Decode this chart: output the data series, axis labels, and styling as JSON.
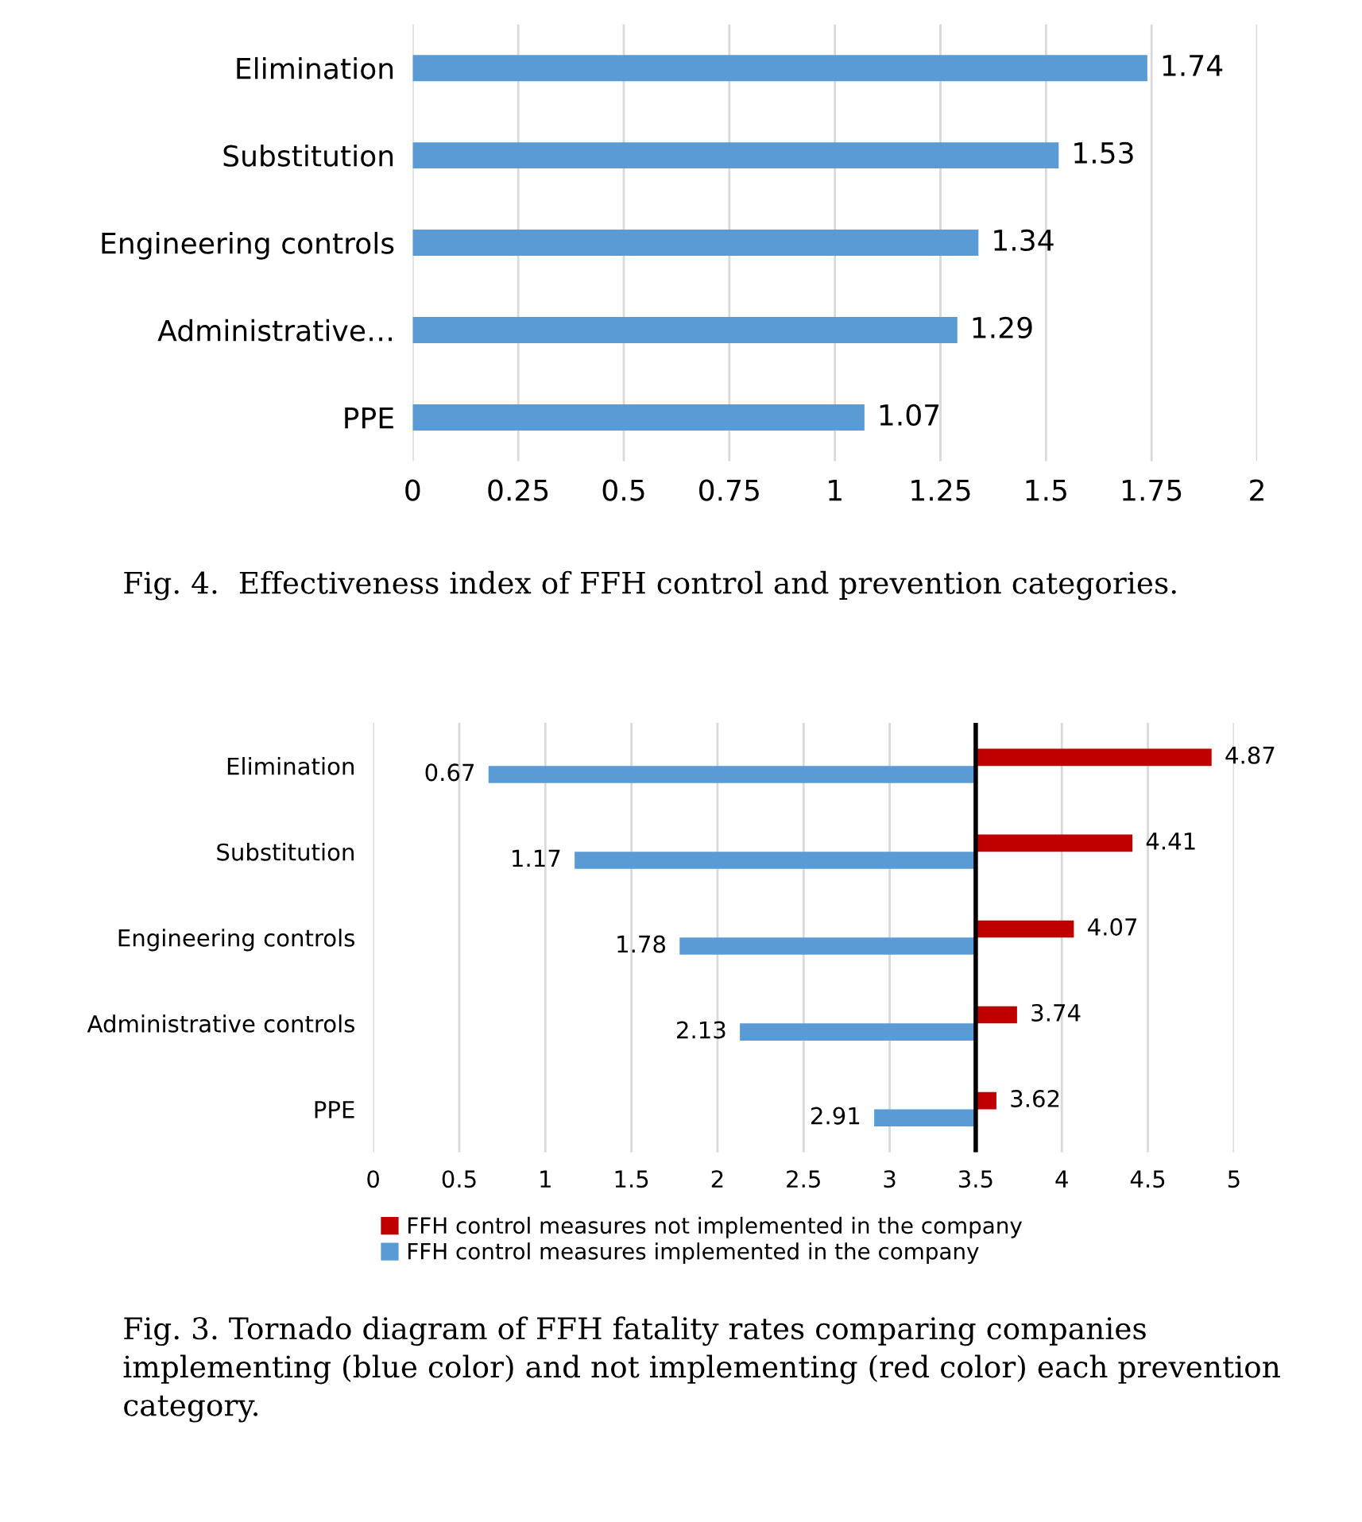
{
  "chart_data": [
    {
      "type": "bar",
      "orientation": "horizontal",
      "title": "Fig. 4.  Effectiveness index of FFH control and prevention categories.",
      "categories": [
        "Elimination",
        "Substitution",
        "Engineering controls",
        "Administrative…",
        "PPE"
      ],
      "series": [
        {
          "color": "#5b9bd5",
          "values": [
            1.74,
            1.53,
            1.34,
            1.29,
            1.07
          ]
        }
      ],
      "data_labels": true,
      "xlim": [
        0,
        2
      ],
      "xticks": [
        0,
        0.25,
        0.5,
        0.75,
        1,
        1.25,
        1.5,
        1.75,
        2
      ],
      "grid": "x",
      "legend": false
    },
    {
      "type": "bar",
      "orientation": "horizontal",
      "title": "Fig. 3. Tornado diagram of FFH fatality rates comparing companies implementing (blue color) and not implementing (red color) each prevention category.",
      "categories": [
        "Elimination",
        "Substitution",
        "Engineering controls",
        "Administrative controls",
        "PPE"
      ],
      "series": [
        {
          "name": "FFH control measures not implemented in the company",
          "color": "#c00000",
          "base": [
            3.5,
            3.5,
            3.5,
            3.5,
            3.5
          ],
          "values": [
            1.37,
            0.91,
            0.57,
            0.24,
            0.12
          ],
          "value_labels": [
            "4.87",
            "4.41",
            "4.07",
            "3.74",
            "3.62"
          ]
        },
        {
          "name": "FFH control measures implemented in the company",
          "color": "#5b9bd5",
          "base": [
            3.5,
            3.5,
            3.5,
            3.5,
            3.5
          ],
          "values": [
            -2.83,
            -2.33,
            -1.72,
            -1.37,
            -0.59
          ],
          "value_labels": [
            "0.67",
            "1.17",
            "1.78",
            "2.13",
            "2.91"
          ]
        }
      ],
      "xlim": [
        0,
        5
      ],
      "xticks": [
        0,
        0.5,
        1,
        1.5,
        2,
        2.5,
        3,
        3.5,
        4,
        4.5,
        5
      ],
      "grid": "x",
      "legend": "bottom",
      "ref_lines": [
        {
          "axis": "x",
          "value": 3.5,
          "color": "#000000",
          "line_style": "solid"
        }
      ]
    }
  ]
}
